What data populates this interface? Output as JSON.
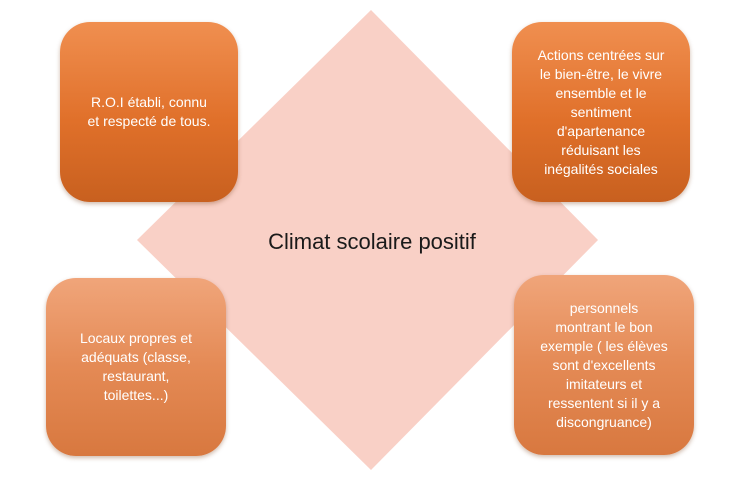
{
  "diagram": {
    "center_label": "Climat scolaire positif",
    "colors": {
      "diamond": "#f8c8bc",
      "box_top": "#e0702a",
      "box_bottom": "#e48a55",
      "box_text": "#ffffff"
    },
    "boxes": {
      "top_left": "R.O.I établi, connu\net respecté de tous.",
      "top_right": "Actions centrées sur\nle bien-être, le vivre\nensemble et le\nsentiment\nd'apartenance\nréduisant les\ninégalités sociales",
      "bottom_left": "Locaux propres et\nadéquats (classe,\nrestaurant,\ntoilettes...)",
      "bottom_right": "personnels\nmontrant le bon\nexemple ( les élèves\nsont d'excellents\nimitateurs et\nressentent si il y a\ndiscongruance)"
    }
  }
}
